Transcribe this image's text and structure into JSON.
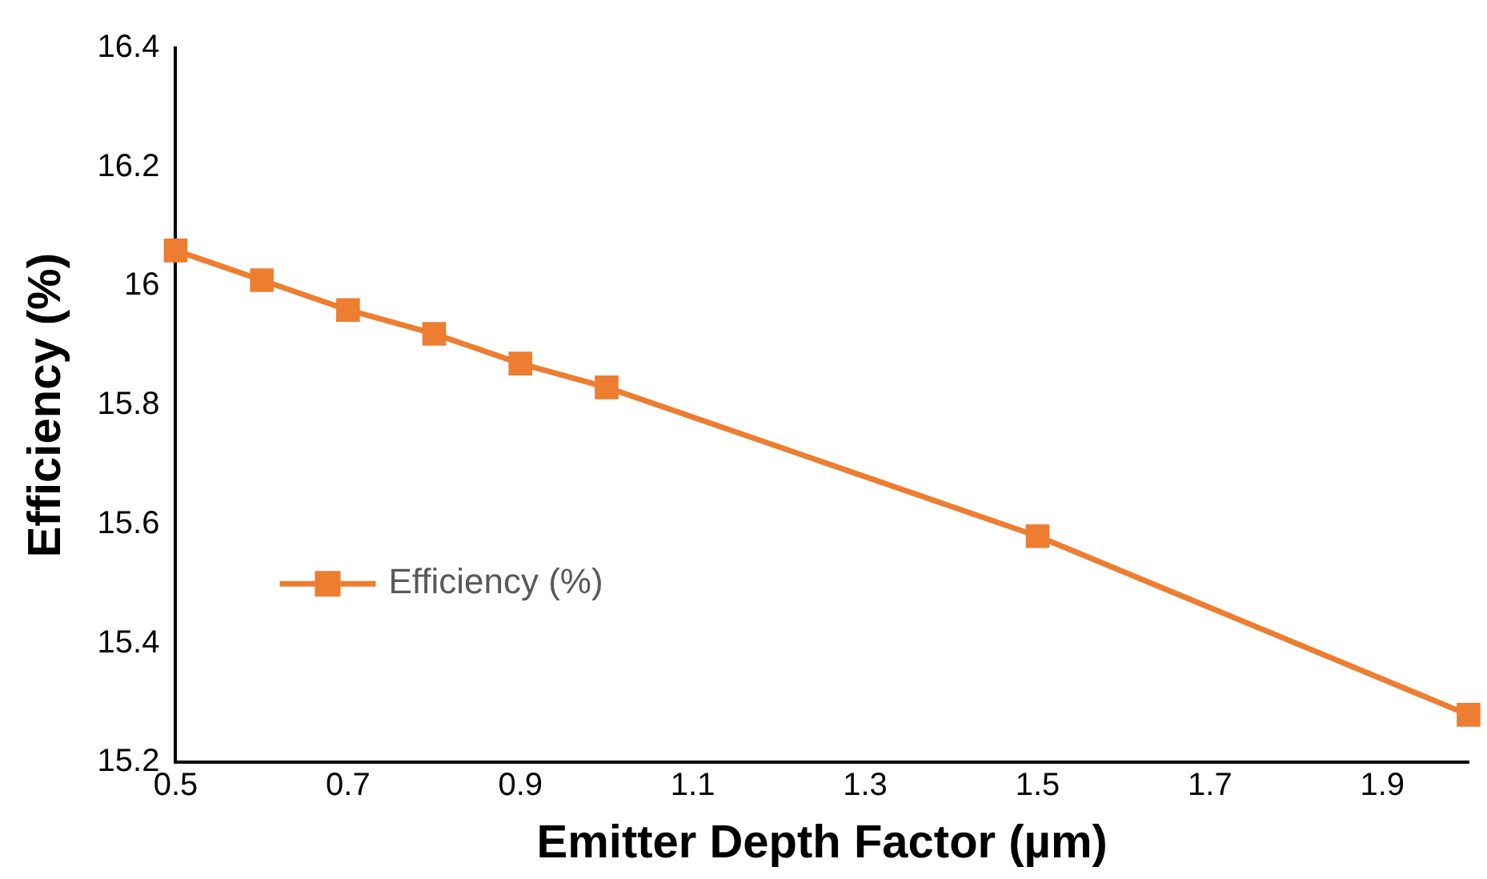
{
  "chart_data": {
    "type": "line",
    "xlabel": "Emitter Depth Factor (µm)",
    "ylabel": "Efficiency (%)",
    "x": [
      0.5,
      0.6,
      0.7,
      0.8,
      0.9,
      1.0,
      1.5,
      2.0
    ],
    "series": [
      {
        "name": "Efficiency (%)",
        "color": "#ed7d31",
        "values": [
          16.06,
          16.01,
          15.96,
          15.92,
          15.87,
          15.83,
          15.58,
          15.28
        ]
      }
    ],
    "xlim": [
      0.5,
      2.0
    ],
    "xticks": [
      0.5,
      0.7,
      0.9,
      1.1,
      1.3,
      1.5,
      1.7,
      1.9
    ],
    "ylim": [
      15.2,
      16.4
    ],
    "yticks": [
      15.2,
      15.4,
      15.6,
      15.8,
      16,
      16.2,
      16.4
    ],
    "grid": false,
    "legend": "left",
    "marker": "square",
    "line_style": "solid"
  }
}
